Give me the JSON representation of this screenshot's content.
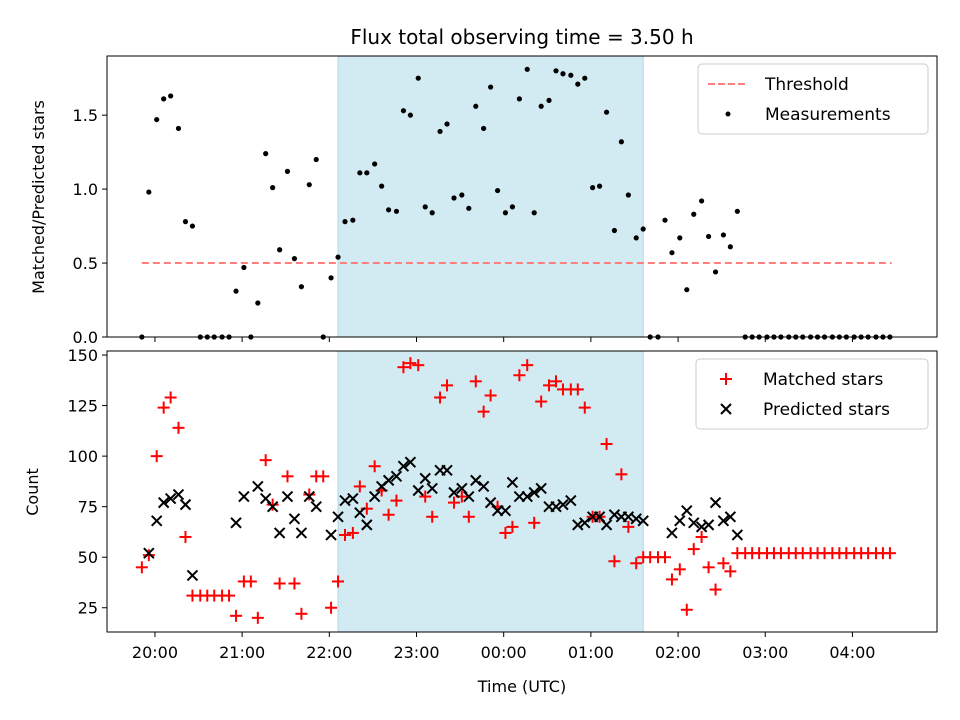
{
  "chart_data": [
    {
      "type": "scatter",
      "title": "Flux total observing time = 3.50 h",
      "xlabel": "",
      "ylabel": "Matched/Predicted stars",
      "xlim_hours": [
        19.45,
        28.97
      ],
      "ylim": [
        0,
        1.9
      ],
      "yticks": [
        "0.0",
        "0.5",
        "1.0",
        "1.5"
      ],
      "ytick_values": [
        0,
        0.5,
        1.0,
        1.5
      ],
      "shaded_span_hours": [
        22.1,
        25.6
      ],
      "shade_color": "#add8e6",
      "threshold": {
        "name": "Threshold",
        "value": 0.5,
        "x_range_hours": [
          19.85,
          28.45
        ],
        "color": "#ff7f7f"
      },
      "legend": {
        "position": "upper right",
        "entries": [
          "Threshold",
          "Measurements"
        ]
      },
      "series": [
        {
          "name": "Measurements",
          "color": "#000000",
          "x_hours": [
            19.85,
            19.93,
            20.02,
            20.1,
            20.18,
            20.27,
            20.35,
            20.43,
            20.52,
            20.6,
            20.68,
            20.77,
            20.85,
            20.93,
            21.02,
            21.1,
            21.18,
            21.27,
            21.35,
            21.43,
            21.52,
            21.6,
            21.68,
            21.77,
            21.85,
            21.93,
            22.02,
            22.1,
            22.18,
            22.27,
            22.35,
            22.43,
            22.52,
            22.6,
            22.68,
            22.77,
            22.85,
            22.93,
            23.02,
            23.1,
            23.18,
            23.27,
            23.35,
            23.43,
            23.52,
            23.6,
            23.68,
            23.77,
            23.85,
            23.93,
            24.02,
            24.1,
            24.18,
            24.27,
            24.35,
            24.43,
            24.52,
            24.6,
            24.68,
            24.77,
            24.85,
            24.93,
            25.02,
            25.1,
            25.18,
            25.27,
            25.35,
            25.43,
            25.52,
            25.6,
            25.68,
            25.77,
            25.85,
            25.93,
            26.02,
            26.1,
            26.18,
            26.27,
            26.35,
            26.43,
            26.52,
            26.6,
            26.68,
            26.77,
            26.85,
            26.93,
            27.02,
            27.1,
            27.18,
            27.27,
            27.35,
            27.43,
            27.52,
            27.6,
            27.68,
            27.77,
            27.85,
            27.93,
            28.02,
            28.1,
            28.18,
            28.27,
            28.35,
            28.43
          ],
          "y": [
            0.0,
            0.98,
            1.47,
            1.61,
            1.63,
            1.41,
            0.78,
            0.75,
            0.0,
            0.0,
            0.0,
            0.0,
            0.0,
            0.31,
            0.47,
            0.0,
            0.23,
            1.24,
            1.01,
            0.59,
            1.12,
            0.53,
            0.34,
            1.03,
            1.2,
            0.0,
            0.4,
            0.54,
            0.78,
            0.79,
            1.11,
            1.11,
            1.17,
            1.02,
            0.86,
            0.85,
            1.53,
            1.5,
            1.75,
            0.88,
            0.84,
            1.39,
            1.44,
            0.94,
            0.96,
            0.87,
            1.56,
            1.41,
            1.69,
            0.99,
            0.84,
            0.88,
            1.61,
            1.81,
            0.84,
            1.56,
            1.6,
            1.8,
            1.78,
            1.77,
            1.71,
            1.75,
            1.01,
            1.02,
            1.52,
            0.72,
            1.32,
            0.96,
            0.67,
            0.73,
            0.0,
            0.0,
            0.79,
            0.57,
            0.67,
            0.32,
            0.83,
            0.92,
            0.68,
            0.44,
            0.69,
            0.61,
            0.85,
            0.0,
            0.0,
            0.0,
            0.0,
            0.0,
            0.0,
            0.0,
            0.0,
            0.0,
            0.0,
            0.0,
            0.0,
            0.0,
            0.0,
            0.0,
            0.0,
            0.0,
            0.0,
            0.0,
            0.0,
            0.0
          ]
        }
      ]
    },
    {
      "type": "scatter",
      "title": "",
      "xlabel": "Time (UTC)",
      "ylabel": "Count",
      "xlim_hours": [
        19.45,
        28.97
      ],
      "ylim": [
        13,
        152
      ],
      "yticks": [
        "25",
        "50",
        "75",
        "100",
        "125",
        "150"
      ],
      "ytick_values": [
        25,
        50,
        75,
        100,
        125,
        150
      ],
      "xticks": [
        "20:00",
        "21:00",
        "22:00",
        "23:00",
        "00:00",
        "01:00",
        "02:00",
        "03:00",
        "04:00"
      ],
      "xtick_hours": [
        20,
        21,
        22,
        23,
        24,
        25,
        26,
        27,
        28
      ],
      "shaded_span_hours": [
        22.1,
        25.6
      ],
      "shade_color": "#add8e6",
      "legend": {
        "position": "upper right",
        "entries": [
          "Matched stars",
          "Predicted stars"
        ]
      },
      "series": [
        {
          "name": "Matched stars",
          "marker": "plus",
          "color": "#ff0000",
          "x_hours": [
            19.85,
            19.93,
            20.02,
            20.1,
            20.18,
            20.27,
            20.35,
            20.43,
            20.52,
            20.6,
            20.68,
            20.77,
            20.85,
            20.93,
            21.02,
            21.1,
            21.18,
            21.27,
            21.35,
            21.43,
            21.52,
            21.6,
            21.68,
            21.77,
            21.85,
            21.93,
            22.02,
            22.1,
            22.18,
            22.27,
            22.35,
            22.43,
            22.52,
            22.6,
            22.68,
            22.77,
            22.85,
            22.93,
            23.02,
            23.1,
            23.18,
            23.27,
            23.35,
            23.43,
            23.52,
            23.6,
            23.68,
            23.77,
            23.85,
            23.93,
            24.02,
            24.1,
            24.18,
            24.27,
            24.35,
            24.43,
            24.52,
            24.6,
            24.68,
            24.77,
            24.85,
            24.93,
            25.02,
            25.1,
            25.18,
            25.27,
            25.35,
            25.43,
            25.52,
            25.6,
            25.68,
            25.77,
            25.85,
            25.93,
            26.02,
            26.1,
            26.18,
            26.27,
            26.35,
            26.43,
            26.52,
            26.6,
            26.68,
            26.77,
            26.85,
            26.93,
            27.02,
            27.1,
            27.18,
            27.27,
            27.35,
            27.43,
            27.52,
            27.6,
            27.68,
            27.77,
            27.85,
            27.93,
            28.02,
            28.1,
            28.18,
            28.27,
            28.35,
            28.43
          ],
          "y": [
            45,
            51,
            100,
            124,
            129,
            114,
            60,
            31,
            31,
            31,
            31,
            31,
            31,
            21,
            38,
            38,
            20,
            98,
            76,
            37,
            90,
            37,
            22,
            81,
            90,
            90,
            25,
            38,
            61,
            62,
            85,
            74,
            95,
            83,
            71,
            78,
            144,
            146,
            145,
            80,
            70,
            129,
            135,
            77,
            80,
            70,
            137,
            122,
            130,
            75,
            62,
            65,
            140,
            145,
            67,
            127,
            135,
            137,
            133,
            133,
            133,
            124,
            70,
            70,
            106,
            48,
            91,
            65,
            47,
            50,
            50,
            50,
            50,
            39,
            44,
            24,
            54,
            60,
            45,
            34,
            47,
            43,
            52,
            52,
            52,
            52,
            52,
            52,
            52,
            52,
            52,
            52,
            52,
            52,
            52,
            52,
            52,
            52,
            52,
            52,
            52,
            52,
            52,
            52
          ]
        },
        {
          "name": "Predicted stars",
          "marker": "x",
          "color": "#000000",
          "x_hours": [
            19.93,
            20.02,
            20.1,
            20.18,
            20.27,
            20.35,
            20.43,
            20.93,
            21.02,
            21.18,
            21.27,
            21.35,
            21.43,
            21.52,
            21.6,
            21.68,
            21.77,
            21.85,
            22.02,
            22.1,
            22.18,
            22.27,
            22.35,
            22.43,
            22.52,
            22.6,
            22.68,
            22.77,
            22.85,
            22.93,
            23.02,
            23.1,
            23.18,
            23.27,
            23.35,
            23.43,
            23.52,
            23.6,
            23.68,
            23.77,
            23.85,
            23.93,
            24.02,
            24.1,
            24.18,
            24.27,
            24.35,
            24.43,
            24.52,
            24.6,
            24.68,
            24.77,
            24.85,
            24.93,
            25.02,
            25.1,
            25.18,
            25.27,
            25.35,
            25.43,
            25.52,
            25.6,
            25.93,
            26.02,
            26.1,
            26.18,
            26.27,
            26.35,
            26.43,
            26.52,
            26.6,
            26.68
          ],
          "y": [
            52,
            68,
            77,
            79,
            81,
            76,
            41,
            67,
            80,
            85,
            79,
            75,
            62,
            80,
            69,
            62,
            80,
            75,
            61,
            70,
            78,
            79,
            72,
            66,
            80,
            85,
            88,
            90,
            95,
            97,
            83,
            89,
            84,
            93,
            93,
            82,
            84,
            80,
            88,
            85,
            77,
            73,
            73,
            87,
            80,
            80,
            82,
            84,
            75,
            75,
            76,
            78,
            66,
            67,
            70,
            70,
            66,
            71,
            70,
            70,
            69,
            68,
            62,
            68,
            73,
            67,
            65,
            66,
            77,
            68,
            70,
            61
          ]
        }
      ]
    }
  ]
}
